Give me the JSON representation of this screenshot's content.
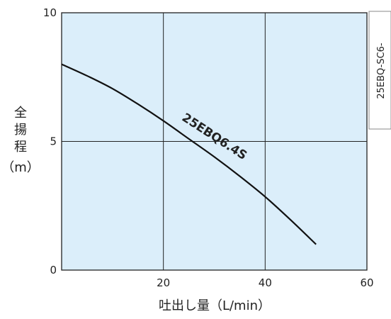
{
  "chart_data": {
    "type": "line",
    "title": "",
    "xlabel": "吐出し量（L/min）",
    "ylabel_lines": [
      "全",
      "揚",
      "程",
      "（m）"
    ],
    "xlim": [
      0,
      60
    ],
    "ylim": [
      0,
      10
    ],
    "x_ticks": [
      20,
      40,
      60
    ],
    "y_ticks": [
      0,
      5,
      10
    ],
    "x_tick_labels": [
      "20",
      "40",
      "60"
    ],
    "y_tick_labels": [
      "0",
      "5",
      "10"
    ],
    "grid": true,
    "background_color": "#dbeefa",
    "line_color": "#111111",
    "series": [
      {
        "name": "25EBQ6.4S",
        "x": [
          0,
          5,
          10,
          15,
          20,
          25,
          30,
          35,
          40,
          45,
          50
        ],
        "y": [
          8.0,
          7.55,
          7.05,
          6.45,
          5.8,
          5.1,
          4.4,
          3.65,
          2.85,
          1.95,
          1.0
        ]
      }
    ]
  },
  "side_tab": {
    "text": "25EBQ-SC6-"
  }
}
